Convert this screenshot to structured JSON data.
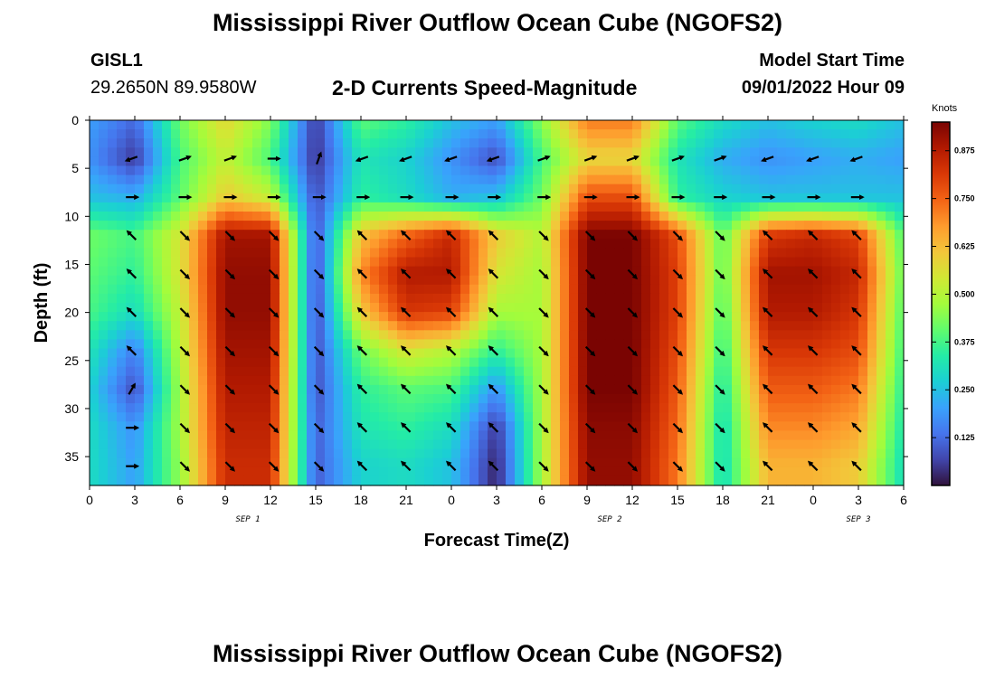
{
  "header": {
    "title": "Mississippi River Outflow Ocean Cube (NGOFS2)",
    "station": "GISL1",
    "coords": "29.2650N  89.9580W",
    "subtitle": "2-D Currents Speed-Magnitude",
    "model_start_label": "Model Start Time",
    "model_start_value": "09/01/2022 Hour 09"
  },
  "footer": {
    "title": "Mississippi River Outflow Ocean Cube (NGOFS2)"
  },
  "chart_data": {
    "type": "heatmap",
    "title": "2-D Currents Speed-Magnitude",
    "xlabel": "Forecast Time(Z)",
    "ylabel": "Depth (ft)",
    "x_range_hours": [
      0,
      54
    ],
    "ylim": [
      0,
      38
    ],
    "y_inverted": true,
    "x_tick_labels": [
      "0",
      "3",
      "6",
      "9",
      "12",
      "15",
      "18",
      "21",
      "0",
      "3",
      "6",
      "9",
      "12",
      "15",
      "18",
      "21",
      "0",
      "3",
      "6"
    ],
    "y_tick_labels": [
      "0",
      "5",
      "10",
      "15",
      "20",
      "25",
      "30",
      "35"
    ],
    "y_tick_values": [
      0,
      5,
      10,
      15,
      20,
      25,
      30,
      35
    ],
    "date_labels": [
      {
        "hour": 10.5,
        "text": "SEP 1"
      },
      {
        "hour": 34.5,
        "text": "SEP 2"
      },
      {
        "hour": 51,
        "text": "SEP 3"
      }
    ],
    "colorbar": {
      "units": "Knots",
      "range": [
        0,
        0.95
      ],
      "ticks": [
        0.125,
        0.25,
        0.375,
        0.5,
        0.625,
        0.75,
        0.875
      ],
      "tick_labels": [
        "0.125",
        "0.250",
        "0.375",
        "0.500",
        "0.625",
        "0.750",
        "0.875"
      ],
      "colormap": [
        "#30123b",
        "#4145ab",
        "#4675ed",
        "#39a2fc",
        "#1bcfd4",
        "#24eca6",
        "#61fc6c",
        "#a4fc3b",
        "#d1e834",
        "#f3c63a",
        "#fe9b2d",
        "#f36315",
        "#d93806",
        "#b11901",
        "#7a0402"
      ]
    },
    "depths_ft": [
      0,
      4,
      8,
      12,
      16,
      20,
      24,
      28,
      32,
      36
    ],
    "time_hours": [
      0,
      3,
      6,
      9,
      12,
      15,
      18,
      21,
      24,
      27,
      30,
      33,
      36,
      39,
      42,
      45,
      48,
      51,
      54
    ],
    "speed": [
      [
        0.2,
        0.12,
        0.42,
        0.58,
        0.44,
        0.05,
        0.4,
        0.35,
        0.25,
        0.2,
        0.45,
        0.72,
        0.72,
        0.4,
        0.3,
        0.25,
        0.28,
        0.3,
        0.25
      ],
      [
        0.18,
        0.05,
        0.38,
        0.52,
        0.38,
        0.04,
        0.32,
        0.28,
        0.18,
        0.08,
        0.38,
        0.58,
        0.58,
        0.32,
        0.22,
        0.18,
        0.2,
        0.22,
        0.2
      ],
      [
        0.25,
        0.22,
        0.4,
        0.6,
        0.52,
        0.08,
        0.35,
        0.3,
        0.22,
        0.25,
        0.42,
        0.78,
        0.78,
        0.35,
        0.28,
        0.25,
        0.25,
        0.25,
        0.25
      ],
      [
        0.42,
        0.38,
        0.55,
        0.9,
        0.9,
        0.08,
        0.62,
        0.75,
        0.85,
        0.6,
        0.5,
        0.95,
        0.95,
        0.78,
        0.4,
        0.82,
        0.85,
        0.8,
        0.38
      ],
      [
        0.4,
        0.35,
        0.55,
        0.92,
        0.92,
        0.07,
        0.7,
        0.88,
        0.88,
        0.55,
        0.48,
        0.95,
        0.95,
        0.8,
        0.4,
        0.9,
        0.9,
        0.85,
        0.4
      ],
      [
        0.38,
        0.3,
        0.52,
        0.92,
        0.92,
        0.07,
        0.6,
        0.82,
        0.8,
        0.48,
        0.48,
        0.95,
        0.95,
        0.8,
        0.38,
        0.88,
        0.88,
        0.82,
        0.38
      ],
      [
        0.32,
        0.15,
        0.5,
        0.9,
        0.9,
        0.08,
        0.42,
        0.55,
        0.5,
        0.35,
        0.48,
        0.95,
        0.95,
        0.78,
        0.35,
        0.82,
        0.82,
        0.78,
        0.36
      ],
      [
        0.28,
        0.08,
        0.48,
        0.88,
        0.88,
        0.08,
        0.35,
        0.4,
        0.38,
        0.18,
        0.48,
        0.95,
        0.95,
        0.76,
        0.32,
        0.76,
        0.76,
        0.72,
        0.34
      ],
      [
        0.3,
        0.18,
        0.48,
        0.86,
        0.86,
        0.1,
        0.32,
        0.35,
        0.3,
        0.05,
        0.48,
        0.93,
        0.93,
        0.74,
        0.3,
        0.7,
        0.7,
        0.66,
        0.32
      ],
      [
        0.3,
        0.2,
        0.46,
        0.84,
        0.84,
        0.1,
        0.28,
        0.3,
        0.25,
        0.02,
        0.48,
        0.92,
        0.92,
        0.72,
        0.3,
        0.64,
        0.64,
        0.6,
        0.3
      ]
    ],
    "arrow_times": [
      2.8,
      6.3,
      9.3,
      12.2,
      15.2,
      18.1,
      21.0,
      24.0,
      26.8,
      30.1,
      33.2,
      36.0,
      39.0,
      41.8,
      45.0,
      48.0,
      50.9
    ],
    "arrow_depths": [
      4,
      8,
      12,
      16,
      20,
      24,
      28,
      32,
      36
    ],
    "arrow_direction_deg": [
      [
        200,
        20,
        20,
        0,
        70,
        200,
        200,
        200,
        200,
        20,
        20,
        20,
        20,
        20,
        200,
        200,
        200
      ],
      [
        0,
        0,
        0,
        0,
        0,
        0,
        0,
        0,
        0,
        0,
        0,
        0,
        0,
        0,
        0,
        0,
        0
      ],
      [
        135,
        315,
        315,
        315,
        315,
        135,
        135,
        135,
        135,
        315,
        315,
        315,
        315,
        315,
        135,
        135,
        135
      ],
      [
        135,
        315,
        315,
        315,
        315,
        135,
        135,
        135,
        135,
        315,
        315,
        315,
        315,
        315,
        135,
        135,
        135
      ],
      [
        135,
        315,
        315,
        315,
        315,
        135,
        135,
        135,
        135,
        315,
        315,
        315,
        315,
        315,
        135,
        135,
        135
      ],
      [
        135,
        315,
        315,
        315,
        315,
        135,
        135,
        135,
        135,
        315,
        315,
        315,
        315,
        315,
        135,
        135,
        135
      ],
      [
        60,
        315,
        315,
        315,
        315,
        135,
        135,
        135,
        135,
        315,
        315,
        315,
        315,
        315,
        135,
        135,
        135
      ],
      [
        0,
        315,
        315,
        315,
        315,
        135,
        135,
        135,
        135,
        315,
        315,
        315,
        315,
        315,
        135,
        135,
        135
      ],
      [
        0,
        315,
        315,
        315,
        315,
        135,
        135,
        135,
        135,
        315,
        315,
        315,
        315,
        315,
        135,
        135,
        135
      ]
    ]
  }
}
